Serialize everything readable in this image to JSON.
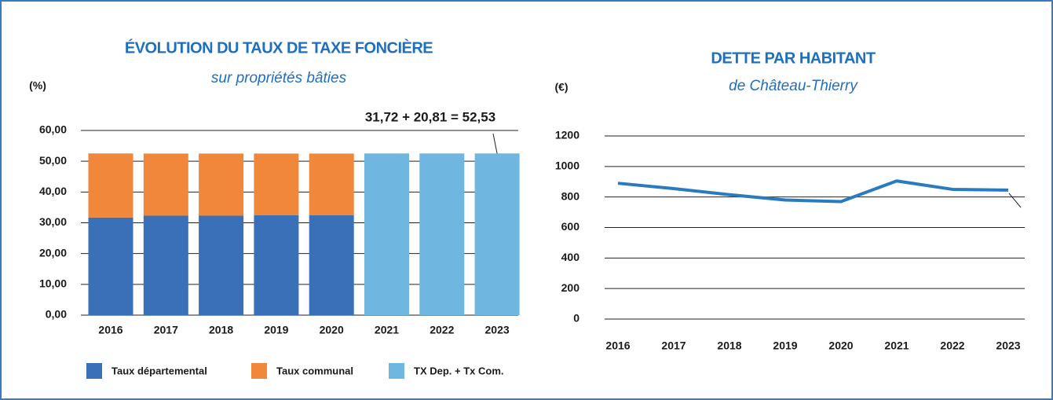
{
  "chart_data": [
    {
      "type": "bar",
      "stacked": true,
      "title": "ÉVOLUTION DU TAUX DE TAXE FONCIÈRE",
      "subtitle": "sur propriétés bâties",
      "ylabel": "(%)",
      "annotation": "31,72 + 20,81 = 52,53",
      "categories": [
        "2016",
        "2017",
        "2018",
        "2019",
        "2020",
        "2021",
        "2022",
        "2023"
      ],
      "series": [
        {
          "name": "Taux départemental",
          "color": "#3a70b8",
          "values": [
            31.72,
            32.3,
            32.3,
            32.5,
            32.5,
            null,
            null,
            null
          ]
        },
        {
          "name": "Taux communal",
          "color": "#f0873a",
          "values": [
            20.81,
            20.2,
            20.2,
            20.0,
            20.0,
            null,
            null,
            null
          ]
        },
        {
          "name": "TX Dep. + Tx Com.",
          "color": "#6fb7e0",
          "values": [
            null,
            null,
            null,
            null,
            null,
            52.53,
            52.53,
            52.53
          ]
        }
      ],
      "ylim": [
        0,
        60
      ],
      "yticks": [
        {
          "value": 0,
          "label": "0,00"
        },
        {
          "value": 10,
          "label": "10,00"
        },
        {
          "value": 20,
          "label": "20,00"
        },
        {
          "value": 30,
          "label": "30,00"
        },
        {
          "value": 40,
          "label": "40,00"
        },
        {
          "value": 50,
          "label": "50,00"
        },
        {
          "value": 60,
          "label": "60,00"
        }
      ],
      "grid": true,
      "legend": "bottom"
    },
    {
      "type": "line",
      "title": "DETTE PAR HABITANT",
      "subtitle": "de Château-Thierry",
      "ylabel": "(€)",
      "categories": [
        "2016",
        "2017",
        "2018",
        "2019",
        "2020",
        "2021",
        "2022",
        "2023"
      ],
      "values": [
        890,
        855,
        815,
        780,
        770,
        905,
        850,
        845
      ],
      "color": "#2a7ac0",
      "ylim": [
        0,
        1200
      ],
      "yticks": [
        0,
        200,
        400,
        600,
        800,
        1000,
        1200
      ],
      "grid": true
    }
  ]
}
